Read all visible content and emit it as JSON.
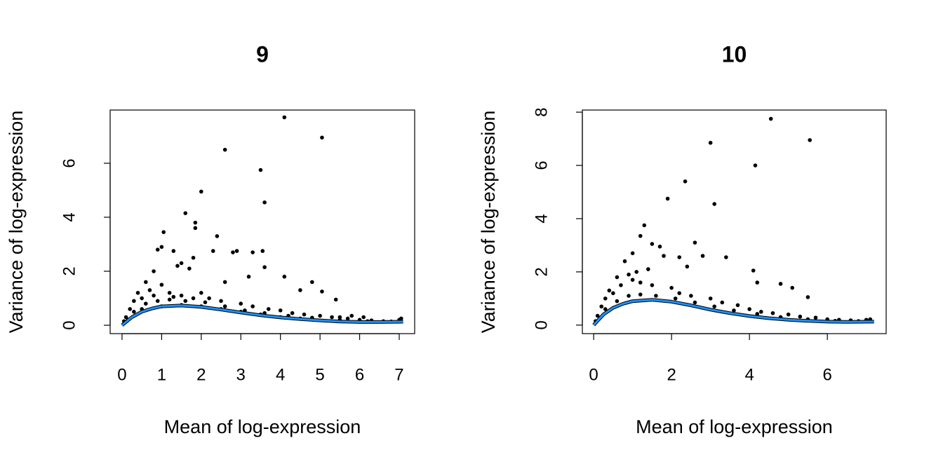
{
  "chart_data": [
    {
      "type": "scatter",
      "title": "9",
      "xlabel": "Mean of log-expression",
      "ylabel": "Variance of log-expression",
      "xlim": [
        -0.3,
        7.39
      ],
      "ylim": [
        -0.31,
        7.97
      ],
      "xticks": [
        0,
        1,
        2,
        3,
        4,
        5,
        6,
        7
      ],
      "yticks": [
        0,
        2,
        4,
        6
      ],
      "points": {
        "color": "#000000",
        "x": [
          4.1,
          5.05,
          2.6,
          3.5,
          3.6,
          2.0,
          1.6,
          1.85,
          1.85,
          2.4,
          1.05,
          1.0,
          0.9,
          1.3,
          1.8,
          2.3,
          2.8,
          2.9,
          3.3,
          3.55,
          3.6,
          4.1,
          4.8,
          4.5,
          5.05,
          5.4,
          3.2,
          2.6,
          1.5,
          1.4,
          1.7,
          0.8,
          0.6,
          0.4,
          0.3,
          0.2,
          0.1,
          0.05,
          0.5,
          0.7,
          1.0,
          1.2,
          1.5,
          2.0,
          2.2,
          2.5,
          3.0,
          3.3,
          3.7,
          4.0,
          4.3,
          4.6,
          5.0,
          5.3,
          5.7,
          6.0,
          6.3,
          6.6,
          7.0,
          7.05,
          0.3,
          0.6,
          0.9,
          1.2,
          1.6,
          2.1,
          2.6,
          3.1,
          3.6,
          4.2,
          4.8,
          5.5,
          6.2,
          6.8,
          0.15,
          0.5,
          1.0,
          1.5,
          2.0,
          2.5,
          3.0,
          3.5,
          4.0,
          4.5,
          5.5,
          5.8,
          6.1,
          0.8,
          1.3,
          1.8
        ],
        "y": [
          7.7,
          6.95,
          6.5,
          5.75,
          4.55,
          4.95,
          4.15,
          3.8,
          3.6,
          3.3,
          3.45,
          2.9,
          2.8,
          2.75,
          2.5,
          2.75,
          2.7,
          2.75,
          2.7,
          2.75,
          2.15,
          1.8,
          1.6,
          1.3,
          1.25,
          0.95,
          1.8,
          1.6,
          2.3,
          2.2,
          2.1,
          2.0,
          1.6,
          1.2,
          0.9,
          0.6,
          0.3,
          0.15,
          1.0,
          1.3,
          1.5,
          1.2,
          1.1,
          1.2,
          1.0,
          0.9,
          0.8,
          0.7,
          0.6,
          0.55,
          0.45,
          0.4,
          0.35,
          0.3,
          0.25,
          0.2,
          0.18,
          0.15,
          0.2,
          0.25,
          0.5,
          0.8,
          0.9,
          0.95,
          0.9,
          0.85,
          0.7,
          0.55,
          0.45,
          0.35,
          0.28,
          0.2,
          0.15,
          0.14,
          0.2,
          0.6,
          0.7,
          0.75,
          0.7,
          0.6,
          0.5,
          0.4,
          0.3,
          0.25,
          0.3,
          0.35,
          0.3,
          1.1,
          1.05,
          1.0
        ]
      },
      "trend": {
        "color": "#1e90ff",
        "x": [
          0,
          0.25,
          0.5,
          0.75,
          1,
          1.5,
          2,
          2.5,
          3,
          3.5,
          4,
          4.5,
          5,
          5.5,
          6,
          6.5,
          7.1
        ],
        "y": [
          0,
          0.3,
          0.5,
          0.62,
          0.7,
          0.73,
          0.68,
          0.58,
          0.47,
          0.37,
          0.29,
          0.23,
          0.18,
          0.14,
          0.12,
          0.12,
          0.13
        ]
      }
    },
    {
      "type": "scatter",
      "title": "10",
      "xlabel": "Mean of log-expression",
      "ylabel": "Variance of log-expression",
      "xlim": [
        -0.29,
        7.51
      ],
      "ylim": [
        -0.32,
        8.08
      ],
      "xticks": [
        0,
        2,
        4,
        6
      ],
      "yticks": [
        0,
        2,
        4,
        6,
        8
      ],
      "points": {
        "color": "#000000",
        "x": [
          4.55,
          3.0,
          5.55,
          4.15,
          2.35,
          3.1,
          1.9,
          1.3,
          1.2,
          1.5,
          1.7,
          2.6,
          2.8,
          3.4,
          2.2,
          4.1,
          4.2,
          4.8,
          5.1,
          5.5,
          0.8,
          1.0,
          0.6,
          0.4,
          0.3,
          0.2,
          0.1,
          0.05,
          0.5,
          0.7,
          1.0,
          1.2,
          1.5,
          2.0,
          2.2,
          2.5,
          3.0,
          3.3,
          3.7,
          4.0,
          4.3,
          4.6,
          5.0,
          5.3,
          5.7,
          6.0,
          6.3,
          6.6,
          7.0,
          7.1,
          0.3,
          0.6,
          0.9,
          1.2,
          1.6,
          2.1,
          2.6,
          3.1,
          3.6,
          4.2,
          4.8,
          5.5,
          6.2,
          6.8,
          1.4,
          1.8,
          2.4,
          1.1,
          0.9
        ],
        "y": [
          7.75,
          6.85,
          6.95,
          6.0,
          5.4,
          4.55,
          4.75,
          3.75,
          3.35,
          3.05,
          2.95,
          3.1,
          2.6,
          2.55,
          2.55,
          2.05,
          1.6,
          1.55,
          1.4,
          1.05,
          2.4,
          2.7,
          1.8,
          1.3,
          1.0,
          0.7,
          0.35,
          0.15,
          1.2,
          1.5,
          1.7,
          1.6,
          1.5,
          1.4,
          1.2,
          1.1,
          1.0,
          0.85,
          0.75,
          0.6,
          0.5,
          0.45,
          0.4,
          0.32,
          0.28,
          0.22,
          0.2,
          0.18,
          0.2,
          0.22,
          0.6,
          0.9,
          1.1,
          1.15,
          1.1,
          1.0,
          0.85,
          0.7,
          0.55,
          0.42,
          0.3,
          0.22,
          0.16,
          0.15,
          2.1,
          2.6,
          2.2,
          2.0,
          1.9
        ]
      },
      "trend": {
        "color": "#1e90ff",
        "x": [
          0,
          0.25,
          0.5,
          0.75,
          1,
          1.5,
          2,
          2.5,
          3,
          3.5,
          4,
          4.5,
          5,
          5.5,
          6,
          6.5,
          7.2
        ],
        "y": [
          0,
          0.4,
          0.65,
          0.8,
          0.9,
          0.95,
          0.88,
          0.74,
          0.58,
          0.45,
          0.34,
          0.26,
          0.2,
          0.16,
          0.13,
          0.12,
          0.13
        ]
      }
    }
  ]
}
